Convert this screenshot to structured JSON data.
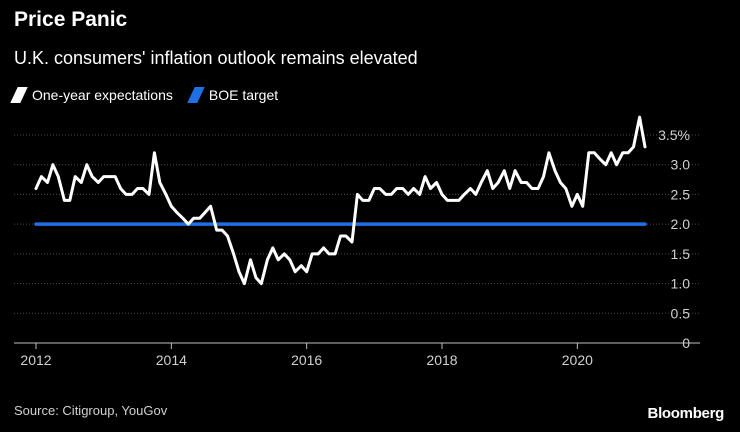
{
  "title": "Price Panic",
  "subtitle": "U.K. consumers' inflation outlook remains elevated",
  "source": "Source: Citigroup, YouGov",
  "brand": "Bloomberg",
  "colors": {
    "background": "#000000",
    "expectations": "#ffffff",
    "target": "#1f6fe5",
    "grid": "#555555"
  },
  "chart_data": {
    "type": "line",
    "title": "Price Panic",
    "subtitle": "U.K. consumers' inflation outlook remains elevated",
    "xlim": [
      2012,
      2021
    ],
    "ylim": [
      0,
      3.5
    ],
    "x_ticks": [
      {
        "value": 2012,
        "label": "2012"
      },
      {
        "value": 2014,
        "label": "2014"
      },
      {
        "value": 2016,
        "label": "2016"
      },
      {
        "value": 2018,
        "label": "2018"
      },
      {
        "value": 2020,
        "label": "2020"
      }
    ],
    "y_ticks": [
      {
        "value": 0,
        "label": "0"
      },
      {
        "value": 0.5,
        "label": "0.5"
      },
      {
        "value": 1.0,
        "label": "1.0"
      },
      {
        "value": 1.5,
        "label": "1.5"
      },
      {
        "value": 2.0,
        "label": "2.0"
      },
      {
        "value": 2.5,
        "label": "2.5"
      },
      {
        "value": 3.0,
        "label": "3.0"
      },
      {
        "value": 3.5,
        "label": "3.5%"
      }
    ],
    "grid": "horizontal",
    "legend_position": "top-left",
    "series": [
      {
        "name": "One-year expectations",
        "color": "#ffffff",
        "points": [
          [
            2012.0,
            2.6
          ],
          [
            2012.08,
            2.8
          ],
          [
            2012.17,
            2.7
          ],
          [
            2012.25,
            3.0
          ],
          [
            2012.33,
            2.8
          ],
          [
            2012.42,
            2.4
          ],
          [
            2012.5,
            2.4
          ],
          [
            2012.58,
            2.8
          ],
          [
            2012.67,
            2.7
          ],
          [
            2012.75,
            3.0
          ],
          [
            2012.83,
            2.8
          ],
          [
            2012.92,
            2.7
          ],
          [
            2013.0,
            2.8
          ],
          [
            2013.08,
            2.8
          ],
          [
            2013.17,
            2.8
          ],
          [
            2013.25,
            2.6
          ],
          [
            2013.33,
            2.5
          ],
          [
            2013.42,
            2.5
          ],
          [
            2013.5,
            2.6
          ],
          [
            2013.58,
            2.6
          ],
          [
            2013.67,
            2.5
          ],
          [
            2013.75,
            3.2
          ],
          [
            2013.83,
            2.7
          ],
          [
            2013.92,
            2.5
          ],
          [
            2014.0,
            2.3
          ],
          [
            2014.08,
            2.2
          ],
          [
            2014.17,
            2.1
          ],
          [
            2014.25,
            2.0
          ],
          [
            2014.33,
            2.1
          ],
          [
            2014.42,
            2.1
          ],
          [
            2014.5,
            2.2
          ],
          [
            2014.58,
            2.3
          ],
          [
            2014.67,
            1.9
          ],
          [
            2014.75,
            1.9
          ],
          [
            2014.83,
            1.8
          ],
          [
            2014.92,
            1.5
          ],
          [
            2015.0,
            1.2
          ],
          [
            2015.08,
            1.0
          ],
          [
            2015.17,
            1.4
          ],
          [
            2015.25,
            1.1
          ],
          [
            2015.33,
            1.0
          ],
          [
            2015.42,
            1.4
          ],
          [
            2015.5,
            1.6
          ],
          [
            2015.58,
            1.4
          ],
          [
            2015.67,
            1.5
          ],
          [
            2015.75,
            1.4
          ],
          [
            2015.83,
            1.2
          ],
          [
            2015.92,
            1.3
          ],
          [
            2016.0,
            1.2
          ],
          [
            2016.08,
            1.5
          ],
          [
            2016.17,
            1.5
          ],
          [
            2016.25,
            1.6
          ],
          [
            2016.33,
            1.5
          ],
          [
            2016.42,
            1.5
          ],
          [
            2016.5,
            1.8
          ],
          [
            2016.58,
            1.8
          ],
          [
            2016.67,
            1.7
          ],
          [
            2016.75,
            2.5
          ],
          [
            2016.83,
            2.4
          ],
          [
            2016.92,
            2.4
          ],
          [
            2017.0,
            2.6
          ],
          [
            2017.08,
            2.6
          ],
          [
            2017.17,
            2.5
          ],
          [
            2017.25,
            2.5
          ],
          [
            2017.33,
            2.6
          ],
          [
            2017.42,
            2.6
          ],
          [
            2017.5,
            2.5
          ],
          [
            2017.58,
            2.6
          ],
          [
            2017.67,
            2.5
          ],
          [
            2017.75,
            2.8
          ],
          [
            2017.83,
            2.6
          ],
          [
            2017.92,
            2.7
          ],
          [
            2018.0,
            2.5
          ],
          [
            2018.08,
            2.4
          ],
          [
            2018.17,
            2.4
          ],
          [
            2018.25,
            2.4
          ],
          [
            2018.33,
            2.5
          ],
          [
            2018.42,
            2.6
          ],
          [
            2018.5,
            2.5
          ],
          [
            2018.58,
            2.7
          ],
          [
            2018.67,
            2.9
          ],
          [
            2018.75,
            2.6
          ],
          [
            2018.83,
            2.7
          ],
          [
            2018.92,
            2.9
          ],
          [
            2019.0,
            2.6
          ],
          [
            2019.08,
            2.9
          ],
          [
            2019.17,
            2.7
          ],
          [
            2019.25,
            2.7
          ],
          [
            2019.33,
            2.6
          ],
          [
            2019.42,
            2.6
          ],
          [
            2019.5,
            2.8
          ],
          [
            2019.58,
            3.2
          ],
          [
            2019.67,
            2.9
          ],
          [
            2019.75,
            2.7
          ],
          [
            2019.83,
            2.6
          ],
          [
            2019.92,
            2.3
          ],
          [
            2020.0,
            2.5
          ],
          [
            2020.08,
            2.3
          ],
          [
            2020.17,
            3.2
          ],
          [
            2020.25,
            3.2
          ],
          [
            2020.33,
            3.1
          ],
          [
            2020.42,
            3.0
          ],
          [
            2020.5,
            3.2
          ],
          [
            2020.58,
            3.0
          ],
          [
            2020.67,
            3.2
          ],
          [
            2020.75,
            3.2
          ],
          [
            2020.83,
            3.3
          ],
          [
            2020.92,
            3.8
          ],
          [
            2021.0,
            3.3
          ]
        ]
      },
      {
        "name": "BOE target",
        "color": "#1f6fe5",
        "points": [
          [
            2012.0,
            2.0
          ],
          [
            2021.0,
            2.0
          ]
        ]
      }
    ]
  }
}
